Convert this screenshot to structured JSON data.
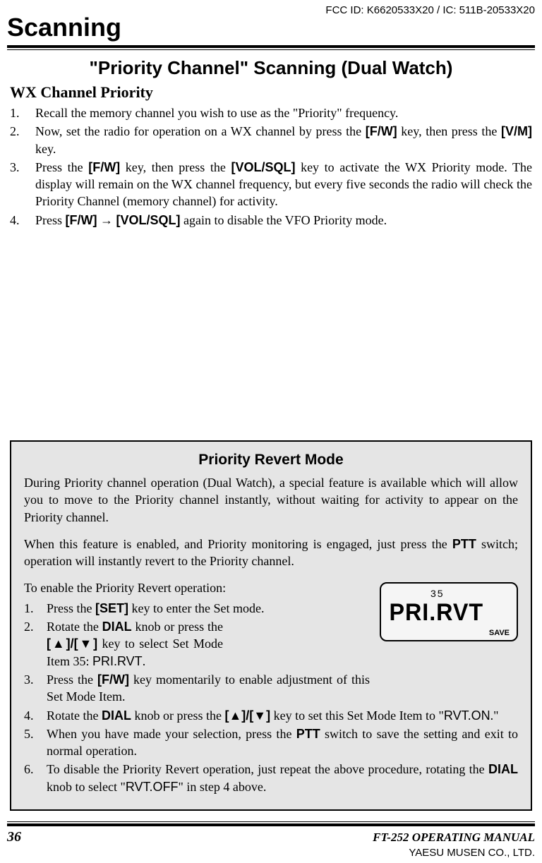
{
  "header_label": "FCC ID: K6620533X20 /  IC: 511B-20533X20",
  "chapter": "Scanning",
  "section_title_parts": {
    "q1": "\"",
    "t1": "Priority Channel",
    "q2": "\"",
    "mid": " Scanning ",
    "p1": "(",
    "t2": "Dual Watch",
    "p2": ")"
  },
  "subsection": "WX Channel Priority",
  "steps": [
    {
      "n": "1.",
      "text": "Recall the memory channel you wish to use as the \"Priority\" frequency."
    },
    {
      "n": "2.",
      "pre": "Now, set the radio for operation on a WX channel by press the ",
      "k1": "[F/W]",
      "mid": " key, then press the ",
      "k2": "[V/M]",
      "post": " key."
    },
    {
      "n": "3.",
      "pre": "Press the ",
      "k1": "[F/W]",
      "mid": " key, then press the ",
      "k2": "[VOL/SQL]",
      "post": " key to activate the WX Priority mode. The display will remain on the WX channel frequency, but every five seconds the radio will check the Priority Channel (memory channel) for activity."
    },
    {
      "n": "4.",
      "pre": "Press ",
      "k1": "[F/W]",
      "arrow": " → ",
      "k2": "[VOL/SQL]",
      "post": " again to disable the VFO Priority mode."
    }
  ],
  "box": {
    "title": "Priority Revert Mode",
    "para1": "During Priority channel operation (Dual Watch), a special feature is available which will allow you to move to the Priority channel instantly, without waiting for activity to appear on the Priority channel.",
    "para2_pre": "When this feature is enabled, and Priority monitoring is engaged, just press the ",
    "para2_key": "PTT",
    "para2_post": " switch; operation will instantly revert to the Priority channel.",
    "intro": "To enable the Priority Revert operation:",
    "items": [
      {
        "n": "1.",
        "pre": "Press the ",
        "k1": "[SET]",
        "post": " key to enter the Set mode."
      },
      {
        "n": "2.",
        "pre": "Rotate the ",
        "kb": "DIAL",
        "mid": " knob or press the ",
        "k1": "[▲]/[▼]",
        "post2": " key to select Set Mode Item 35: ",
        "seg": "PRI.RVT",
        "tail": "."
      },
      {
        "n": "3.",
        "pre": "Press the ",
        "k1": "[F/W]",
        "post": " key momentarily to enable adjustment of this Set Mode Item."
      },
      {
        "n": "4.",
        "pre": "Rotate the ",
        "kb": "DIAL",
        "mid": " knob or press the ",
        "k1": "[▲]/[▼]",
        "post2": " key to set this Set Mode Item to \"",
        "seg": "RVT.ON",
        "tail": ".\""
      },
      {
        "n": "5.",
        "pre": "When you have made your selection, press the ",
        "kb": "PTT",
        "post": " switch to save the setting and exit to normal operation."
      },
      {
        "n": "6.",
        "pre": "To disable the Priority Revert operation, just repeat the above procedure, rotating the ",
        "kb": "DIAL",
        "mid2": " knob to select \"",
        "seg": "RVT.OFF",
        "tail": "\" in step 4 above."
      }
    ],
    "lcd": {
      "small": "35",
      "big": "PRI.RVT",
      "save": "SAVE"
    }
  },
  "footer": {
    "page": "36",
    "manual": "FT-252 OPERATING MANUAL",
    "yaesu": "YAESU MUSEN CO., LTD."
  }
}
